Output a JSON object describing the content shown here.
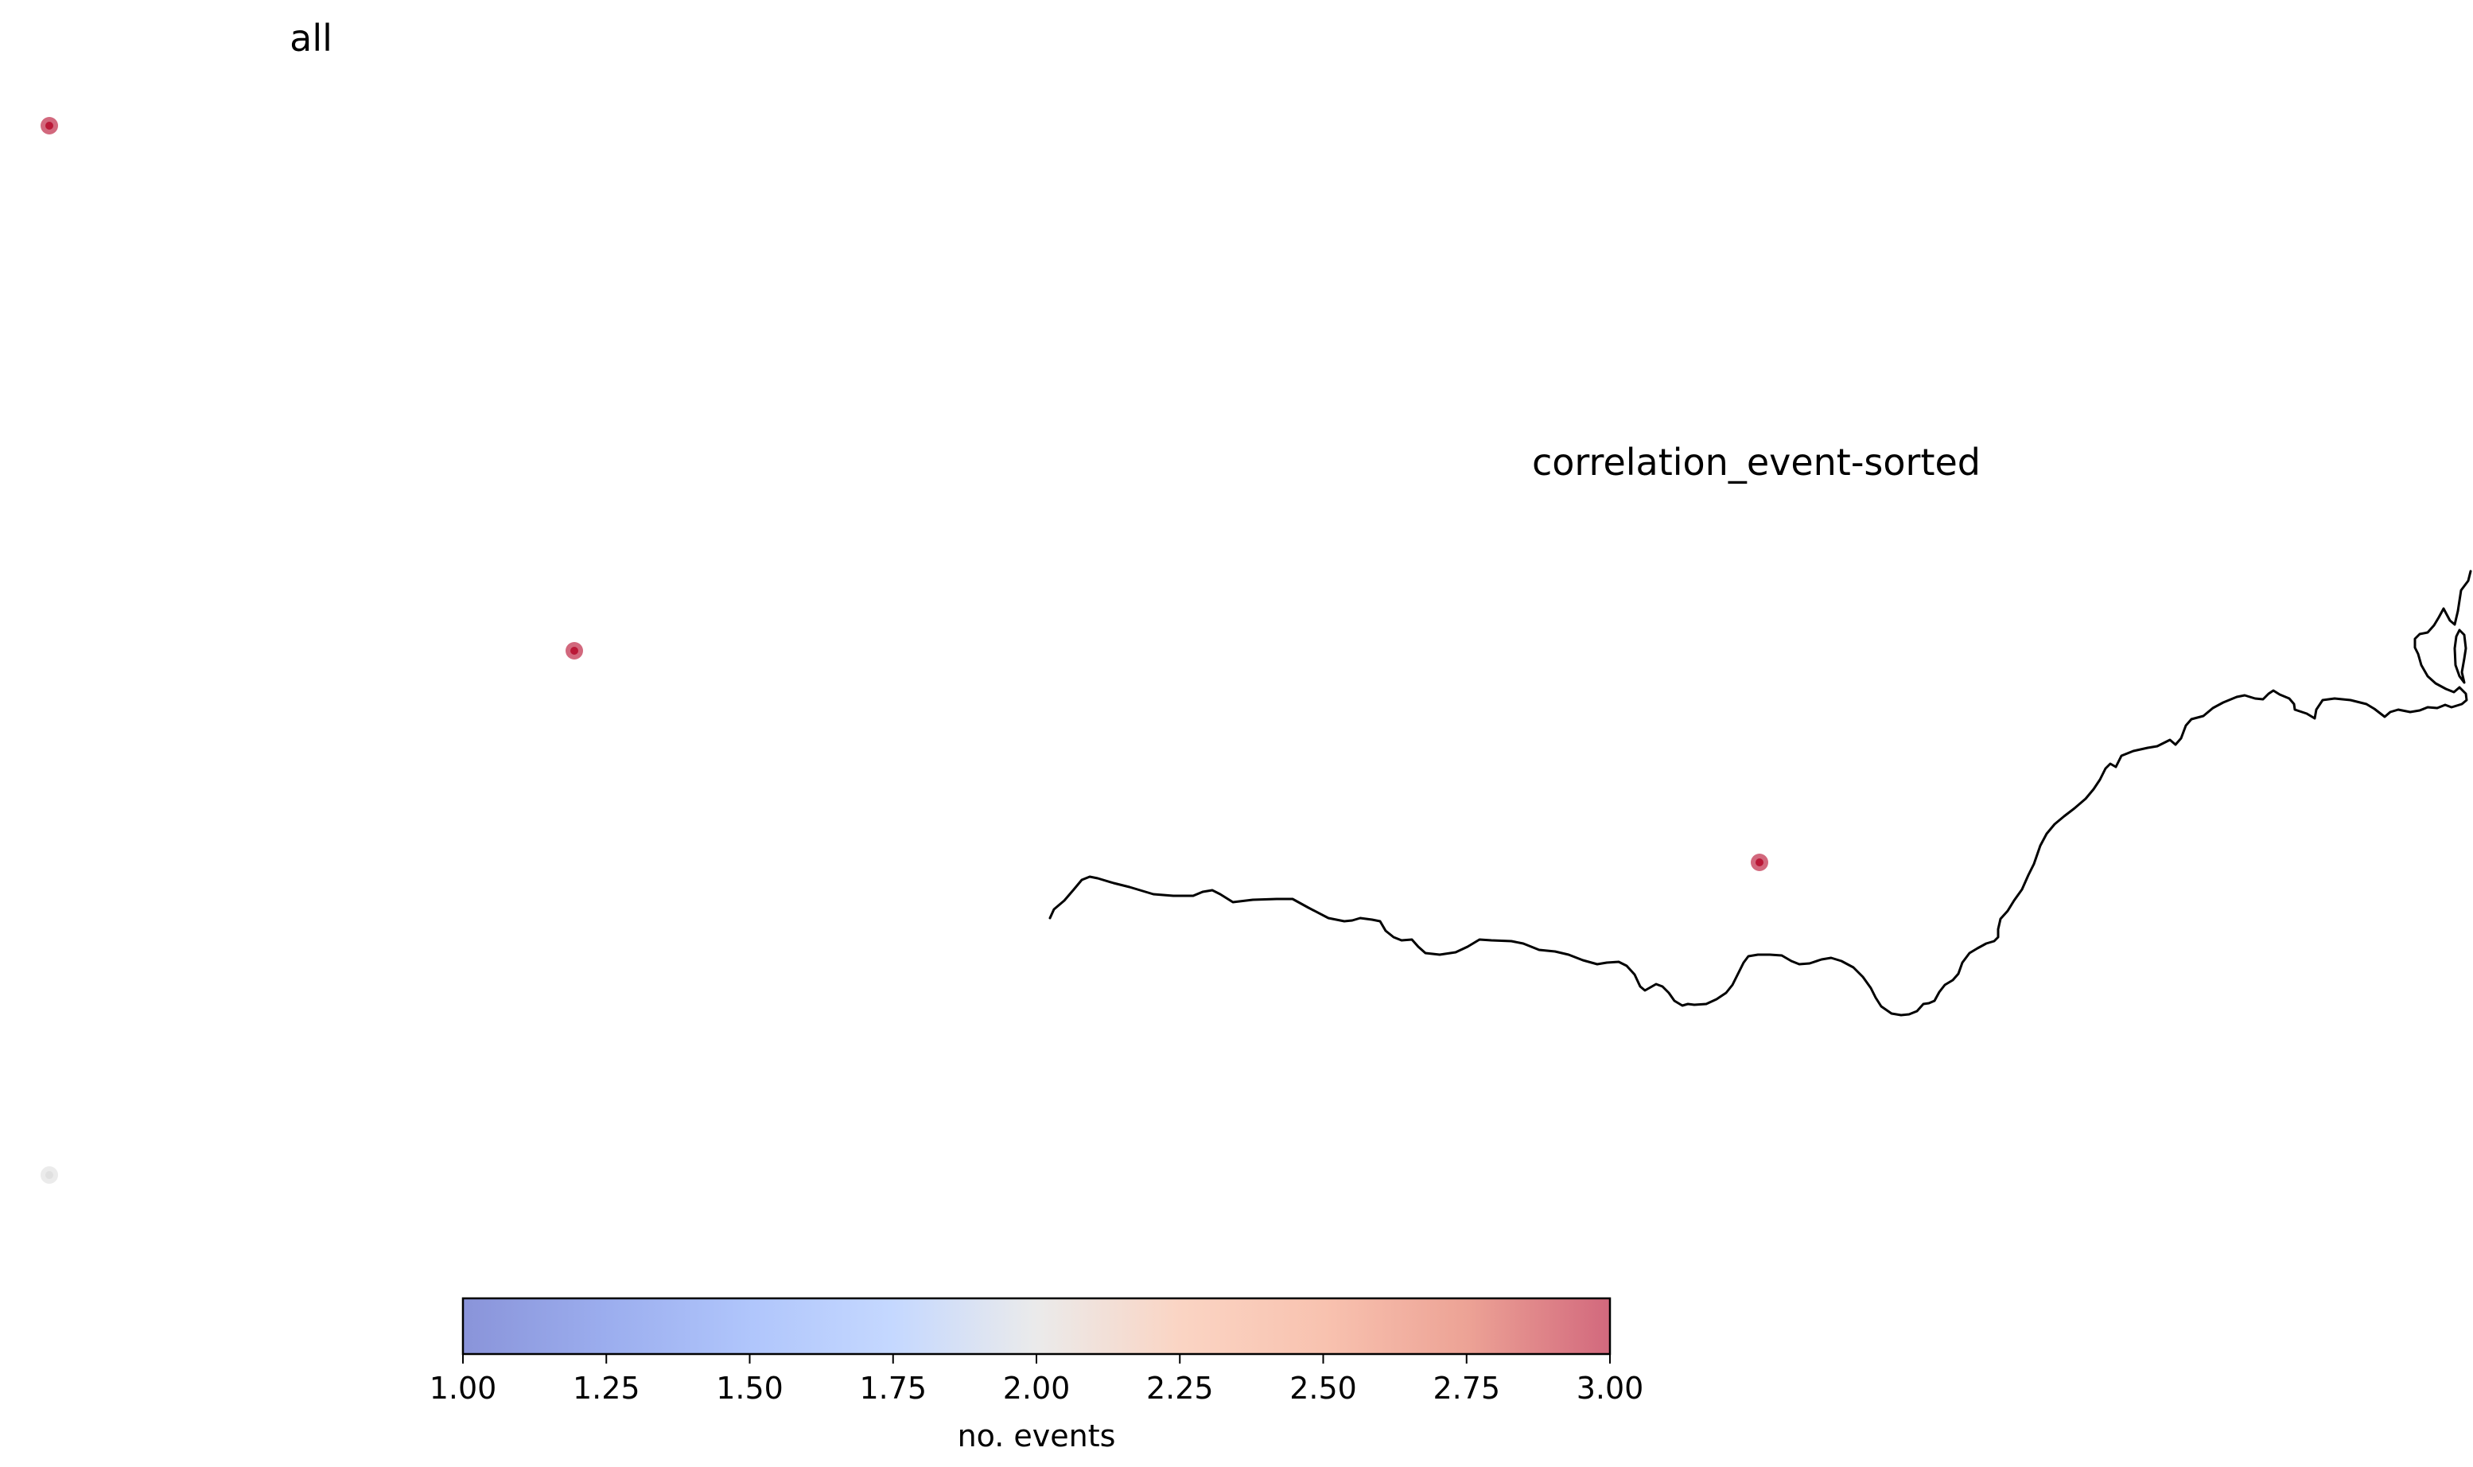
{
  "panels": [
    {
      "title": "all",
      "points": [
        {
          "id": "a1",
          "value": 3
        },
        {
          "id": "a2",
          "value": 3
        },
        {
          "id": "a3",
          "value": 2
        }
      ]
    },
    {
      "title": "correlation_event-sorted",
      "points": [
        {
          "id": "b1",
          "value": 3
        }
      ],
      "features": [
        "coastline"
      ]
    }
  ],
  "chart_data": {
    "type": "scatter",
    "colormap": "coolwarm",
    "colorbar": {
      "label": "no. events",
      "vmin": 1.0,
      "vmax": 3.0,
      "ticks": [
        "1.00",
        "1.25",
        "1.50",
        "1.75",
        "2.00",
        "2.25",
        "2.50",
        "2.75",
        "3.00"
      ],
      "orientation": "horizontal",
      "placement": "bottom"
    },
    "colors": {
      "low": "#3b4cc0",
      "mid": "#dddddd",
      "high": "#b40426",
      "marker_alpha": 0.6
    },
    "grid": false,
    "axes_visible": false
  }
}
